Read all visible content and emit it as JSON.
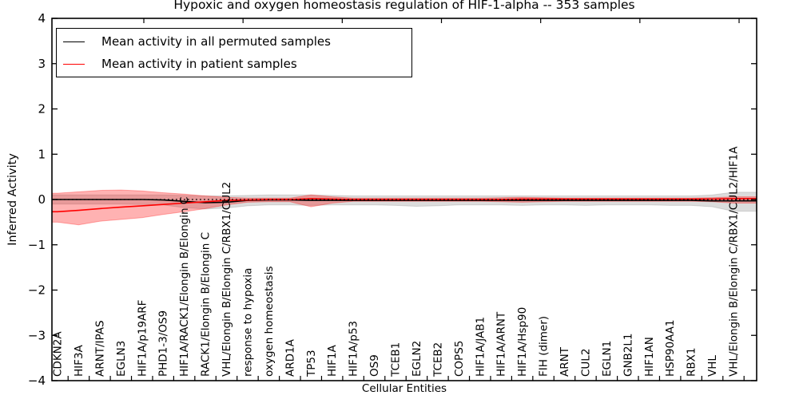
{
  "title": "Hypoxic and oxygen homeostasis regulation of HIF-1-alpha -- 353 samples",
  "legend": {
    "entries": [
      {
        "label": "Mean activity in all permuted samples",
        "color": "#000000"
      },
      {
        "label": "Mean activity in patient samples",
        "color": "#ff0000"
      }
    ]
  },
  "chart_data": {
    "type": "line",
    "title": "Hypoxic and oxygen homeostasis regulation of HIF-1-alpha -- 353 samples",
    "xlabel": "Cellular Entities",
    "ylabel": "Inferred Activity",
    "ylim": [
      -4,
      4
    ],
    "yticks": [
      4,
      3,
      2,
      1,
      0,
      -1,
      -2,
      -3,
      -4
    ],
    "grid": false,
    "legend_position": "upper left",
    "zero_line": {
      "y": 0,
      "style": "dotted",
      "color": "#000000"
    },
    "categories": [
      "CDKN2A",
      "HIF3A",
      "ARNT/IPAS",
      "EGLN3",
      "HIF1A/p19ARF",
      "PHD1-3/OS9",
      "HIF1A/RACK1/Elongin B/Elongin C",
      "RACK1/Elongin B/Elongin C",
      "VHL/Elongin B/Elongin C/RBX1/CUL2",
      "response to hypoxia",
      "oxygen homeostasis",
      "ARD1A",
      "TP53",
      "HIF1A",
      "HIF1A/p53",
      "OS9",
      "TCEB1",
      "EGLN2",
      "TCEB2",
      "COPS5",
      "HIF1A/JAB1",
      "HIF1A/ARNT",
      "HIF1A/Hsp90",
      "FIH (dimer)",
      "ARNT",
      "CUL2",
      "EGLN1",
      "GNB2L1",
      "HIF1AN",
      "HSP90AA1",
      "RBX1",
      "VHL",
      "VHL/Elongin B/Elongin C/RBX1/CUL2/HIF1A"
    ],
    "series": [
      {
        "name": "Mean activity in all permuted samples",
        "color": "#000000",
        "values": [
          0.0,
          0.0,
          0.0,
          0.0,
          0.0,
          -0.01,
          -0.04,
          -0.07,
          -0.06,
          -0.02,
          -0.01,
          -0.01,
          -0.02,
          -0.02,
          -0.02,
          -0.02,
          -0.02,
          -0.02,
          -0.02,
          -0.02,
          -0.02,
          -0.02,
          -0.02,
          -0.02,
          -0.02,
          -0.02,
          -0.02,
          -0.02,
          -0.02,
          -0.02,
          -0.02,
          -0.03,
          -0.03
        ]
      },
      {
        "name": "Mean activity in patient samples",
        "color": "#ff0000",
        "values": [
          -0.27,
          -0.24,
          -0.2,
          -0.17,
          -0.14,
          -0.11,
          -0.08,
          -0.05,
          -0.02,
          -0.01,
          0.0,
          0.0,
          0.02,
          0.01,
          0.0,
          0.0,
          0.0,
          0.0,
          0.0,
          0.0,
          0.0,
          0.0,
          0.01,
          0.01,
          0.01,
          0.01,
          0.01,
          0.01,
          0.01,
          0.01,
          0.01,
          0.01,
          0.02
        ]
      }
    ],
    "bands": [
      {
        "name": "permuted samples range",
        "color": "rgba(130,130,130,0.28)",
        "upper": [
          0.1,
          0.1,
          0.1,
          0.1,
          0.1,
          0.1,
          0.09,
          0.08,
          0.08,
          0.09,
          0.1,
          0.1,
          0.1,
          0.09,
          0.08,
          0.08,
          0.08,
          0.08,
          0.08,
          0.08,
          0.08,
          0.08,
          0.08,
          0.08,
          0.08,
          0.08,
          0.08,
          0.08,
          0.08,
          0.08,
          0.08,
          0.1,
          0.16
        ],
        "lower": [
          -0.1,
          -0.1,
          -0.1,
          -0.1,
          -0.11,
          -0.12,
          -0.18,
          -0.21,
          -0.19,
          -0.14,
          -0.12,
          -0.12,
          -0.13,
          -0.12,
          -0.12,
          -0.12,
          -0.13,
          -0.15,
          -0.14,
          -0.12,
          -0.12,
          -0.12,
          -0.13,
          -0.12,
          -0.12,
          -0.13,
          -0.12,
          -0.12,
          -0.12,
          -0.13,
          -0.13,
          -0.16,
          -0.26
        ]
      },
      {
        "name": "patient samples range",
        "color": "rgba(255,0,0,0.30)",
        "upper": [
          0.14,
          0.17,
          0.2,
          0.21,
          0.19,
          0.15,
          0.12,
          0.08,
          0.05,
          0.03,
          0.03,
          0.03,
          0.1,
          0.06,
          0.03,
          0.03,
          0.03,
          0.03,
          0.03,
          0.03,
          0.03,
          0.04,
          0.05,
          0.04,
          0.03,
          0.03,
          0.03,
          0.03,
          0.03,
          0.03,
          0.03,
          0.04,
          0.06
        ],
        "lower": [
          -0.5,
          -0.56,
          -0.48,
          -0.44,
          -0.4,
          -0.33,
          -0.27,
          -0.2,
          -0.12,
          -0.06,
          -0.05,
          -0.05,
          -0.16,
          -0.08,
          -0.04,
          -0.04,
          -0.04,
          -0.04,
          -0.04,
          -0.04,
          -0.04,
          -0.05,
          -0.06,
          -0.05,
          -0.04,
          -0.04,
          -0.04,
          -0.04,
          -0.04,
          -0.04,
          -0.04,
          -0.05,
          -0.08
        ]
      }
    ]
  }
}
